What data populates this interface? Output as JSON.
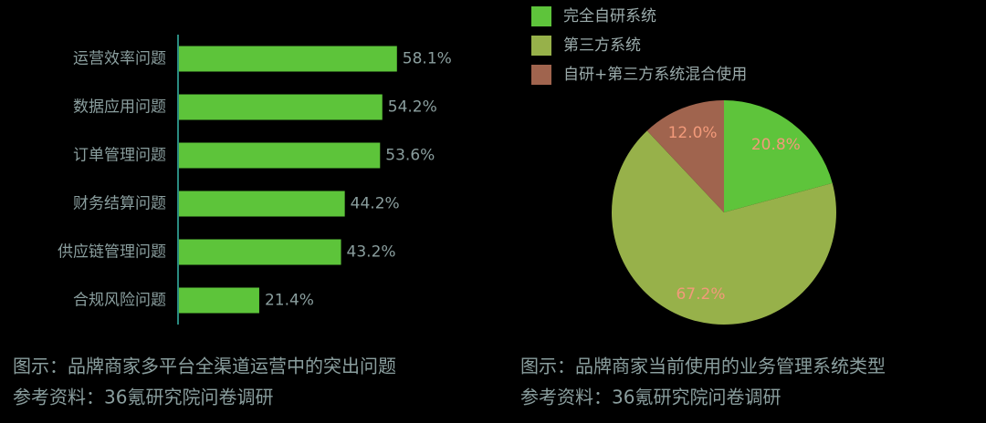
{
  "chart_data": [
    {
      "type": "bar",
      "orientation": "horizontal",
      "color": "#5dc43a",
      "categories": [
        "运营效率问题",
        "数据应用问题",
        "订单管理问题",
        "财务结算问题",
        "供应链管理问题",
        "合规风险问题"
      ],
      "values": [
        58.1,
        54.2,
        53.6,
        44.2,
        43.2,
        21.4
      ],
      "value_labels": [
        "58.1%",
        "54.2%",
        "53.6%",
        "44.2%",
        "43.2%",
        "21.4%"
      ],
      "caption": "图示：品牌商家多平台全渠道运营中的突出问题",
      "source": "参考资料：36氪研究院问卷调研"
    },
    {
      "type": "pie",
      "categories": [
        "完全自研系统",
        "第三方系统",
        "自研+第三方系统混合使用"
      ],
      "values": [
        20.8,
        67.2,
        12.0
      ],
      "value_labels": [
        "20.8%",
        "67.2%",
        "12.0%"
      ],
      "colors": [
        "#5ec43b",
        "#97b14a",
        "#a0644e"
      ],
      "caption": "图示：品牌商家当前使用的业务管理系统类型",
      "source": "参考资料：36氪研究院问卷调研"
    }
  ]
}
